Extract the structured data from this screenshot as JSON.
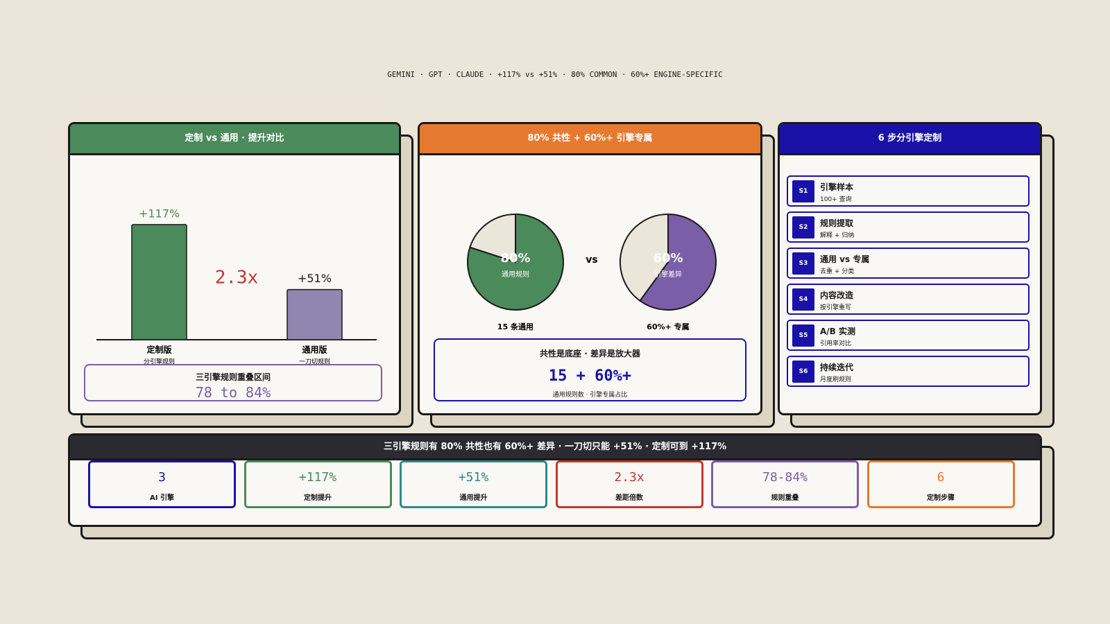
{
  "subtitle": "GEMINI · GPT · CLAUDE · +117% vs +51% · 80% COMMON · 60%+ ENGINE-SPECIFIC",
  "panels": [
    {
      "title": "定制 vs 通用 · 提升对比",
      "color": "#4b8a5a"
    },
    {
      "title": "80% 共性 + 60%+ 引擎专属",
      "color": "#e57a30"
    },
    {
      "title": "6 步分引擎定制",
      "color": "#1a12a8"
    }
  ],
  "chart_data": [
    {
      "type": "bar",
      "categories": [
        "定制版",
        "通用版"
      ],
      "sublabels": [
        "分引擎规则",
        "一刀切规则"
      ],
      "values": [
        117,
        51
      ],
      "value_labels": [
        "+117%",
        "+51%"
      ],
      "colors": [
        "#4b8a5a",
        "#8f87b0"
      ]
    },
    {
      "type": "pie",
      "categories": [
        "通用规则",
        null
      ],
      "values": [
        80,
        20
      ],
      "value_labels": [
        "80%",
        null
      ],
      "colors": [
        "#4b8a5a",
        "#ebe6da"
      ],
      "caption": "15 条通用"
    },
    {
      "type": "pie",
      "categories": [
        "引擎差异",
        null
      ],
      "values": [
        60,
        40
      ],
      "value_labels": [
        "60%",
        null
      ],
      "colors": [
        "#7b5ea8",
        "#ebe6da"
      ],
      "caption": "60%+ 专属"
    }
  ],
  "annotation": "2.3x",
  "overlap_box": {
    "title": "三引擎规则重叠区间",
    "value": "78 to 84%"
  },
  "pie_vs": "vs",
  "summary_box": {
    "title": "共性是底座 · 差异是放大器",
    "value": "15 + 60%+",
    "caption": "通用规则数 · 引擎专属占比"
  },
  "steps": [
    {
      "id": "S1",
      "title": "引擎样本",
      "detail": "100+ 查询"
    },
    {
      "id": "S2",
      "title": "规则提取",
      "detail": "解释 + 归纳"
    },
    {
      "id": "S3",
      "title": "通用 vs 专属",
      "detail": "去重 + 分类"
    },
    {
      "id": "S4",
      "title": "内容改造",
      "detail": "按引擎重写"
    },
    {
      "id": "S5",
      "title": "A/B 实测",
      "detail": "引用率对比"
    },
    {
      "id": "S6",
      "title": "持续迭代",
      "detail": "月度刷规则"
    }
  ],
  "banner": "三引擎规则有 80% 共性也有 60%+ 差异 · 一刀切只能 +51% · 定制可到 +117%",
  "stats": [
    {
      "value": "3",
      "label": "AI 引擎",
      "color": "#1a12a8"
    },
    {
      "value": "+117%",
      "label": "定制提升",
      "color": "#4b8a5a"
    },
    {
      "value": "+51%",
      "label": "通用提升",
      "color": "#2f8a86"
    },
    {
      "value": "2.3x",
      "label": "差距倍数",
      "color": "#c0392b"
    },
    {
      "value": "78-84%",
      "label": "规则重叠",
      "color": "#7b5ea8"
    },
    {
      "value": "6",
      "label": "定制步骤",
      "color": "#e57a30"
    }
  ]
}
